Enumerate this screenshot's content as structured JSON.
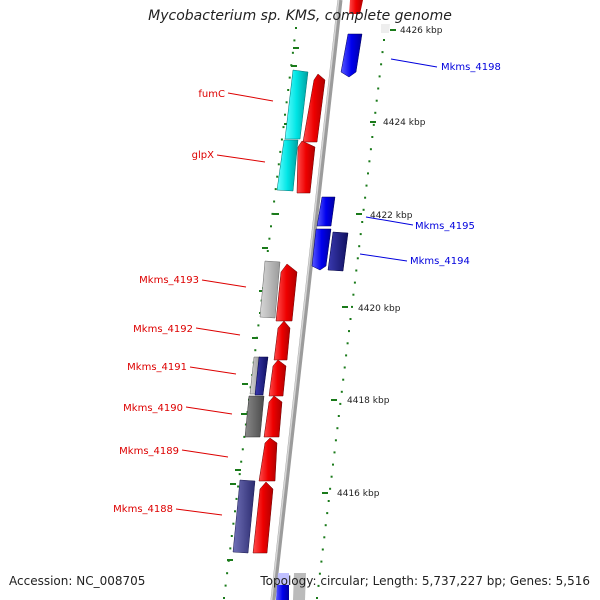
{
  "title": "Mycobacterium sp. KMS, complete genome",
  "accession": "Accession: NC_008705",
  "topology": "Topology: circular; Length: 5,737,227 bp; Genes: 5,516",
  "colors": {
    "forward_cds": "#ee0000",
    "reverse_cds": "#0000ee",
    "backbone": "#8c8c8c",
    "tick": "#1a7a1a",
    "cyan_cds": "#00cccc",
    "gray_cds": "#999999",
    "navy_cds": "#3c3c8c"
  },
  "scale_ticks": [
    "4426 kbp",
    "4424 kbp",
    "4422 kbp",
    "4420 kbp",
    "4418 kbp",
    "4416 kbp"
  ],
  "left_labels": [
    "fumC",
    "glpX",
    "Mkms_4193",
    "Mkms_4192",
    "Mkms_4191",
    "Mkms_4190",
    "Mkms_4189",
    "Mkms_4188"
  ],
  "right_labels": [
    "Mkms_4198",
    "Mkms_4195",
    "Mkms_4194"
  ]
}
